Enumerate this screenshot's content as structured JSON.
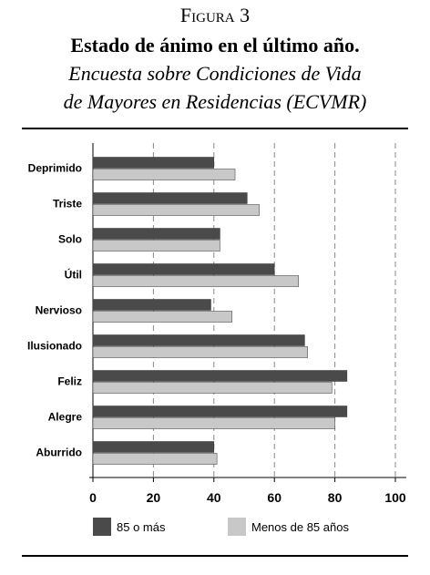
{
  "chart_data": {
    "type": "bar",
    "orientation": "horizontal",
    "figure_label": "Figura 3",
    "title": "Estado de ánimo en el último año.",
    "subtitle": [
      "Encuesta sobre Condiciones de Vida",
      "de Mayores en Residencias (ECVMR)"
    ],
    "categories": [
      "Deprimido",
      "Triste",
      "Solo",
      "Útil",
      "Nervioso",
      "Ilusionado",
      "Feliz",
      "Alegre",
      "Aburrido"
    ],
    "series": [
      {
        "name": "85 o más",
        "color": "#4a4a4a",
        "values": [
          40,
          51,
          42,
          60,
          39,
          70,
          84,
          84,
          40
        ]
      },
      {
        "name": "Menos de 85 años",
        "color": "#c8c8c8",
        "values": [
          47,
          55,
          42,
          68,
          46,
          71,
          79,
          80,
          41
        ]
      }
    ],
    "xlim": [
      0,
      100
    ],
    "xticks": [
      0,
      20,
      40,
      60,
      80,
      100
    ],
    "grid": true
  }
}
